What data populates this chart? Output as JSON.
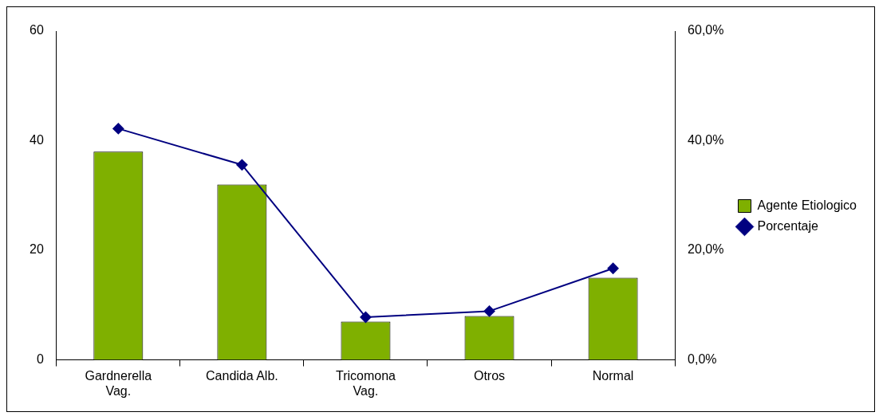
{
  "chart_data": {
    "type": "bar",
    "categories": [
      "Gardnerella\nVag.",
      "Candida Alb.",
      "Tricomona\nVag.",
      "Otros",
      "Normal"
    ],
    "series": [
      {
        "name": "Agente Etiologico",
        "color": "#7fb000",
        "values": [
          38,
          32,
          7,
          8,
          15
        ]
      },
      {
        "name": "Porcentaje",
        "type": "line",
        "axis": "y2",
        "color": "#000080",
        "values": [
          42.2,
          35.6,
          7.8,
          8.9,
          16.7
        ]
      }
    ],
    "ylim": [
      0,
      60
    ],
    "yticks": [
      0,
      20,
      40,
      60
    ],
    "y2lim": [
      0,
      60
    ],
    "y2ticks": [
      {
        "value": 0,
        "label": "0,0%"
      },
      {
        "value": 20,
        "label": "20,0%"
      },
      {
        "value": 40,
        "label": "40,0%"
      },
      {
        "value": 60,
        "label": "60,0%"
      }
    ],
    "grid": false,
    "legend": "right",
    "marker": "diamond"
  }
}
